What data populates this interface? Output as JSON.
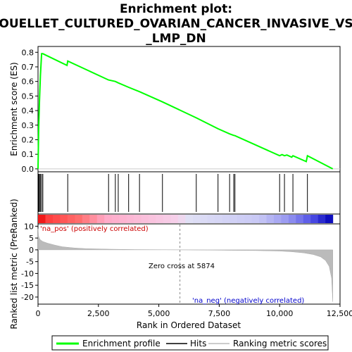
{
  "title_lines": [
    "Enrichment plot:",
    "OUELLET_CULTURED_OVARIAN_CANCER_INVASIVE_VS",
    "_LMP_DN"
  ],
  "chart_data": {
    "type": "line",
    "title": "Enrichment plot: OUELLET_CULTURED_OVARIAN_CANCER_INVASIVE_VS_LMP_DN",
    "es_panel": {
      "ylabel": "Enrichment score (ES)",
      "ylim": [
        -0.02,
        0.84
      ],
      "yticks": [
        "0.0",
        "0.1",
        "0.2",
        "0.3",
        "0.4",
        "0.5",
        "0.6",
        "0.7",
        "0.8"
      ],
      "line_color": "#00ff00",
      "series": [
        {
          "name": "Enrichment profile",
          "x": [
            0,
            30,
            60,
            100,
            150,
            200,
            1200,
            1230,
            2920,
            3200,
            3320,
            3750,
            4200,
            5150,
            6550,
            7450,
            7930,
            8100,
            8150,
            10000,
            10100,
            10200,
            10300,
            10500,
            10550,
            11100,
            11150,
            12200
          ],
          "y": [
            0.0,
            0.29,
            0.47,
            0.64,
            0.79,
            0.79,
            0.71,
            0.74,
            0.61,
            0.6,
            0.59,
            0.56,
            0.53,
            0.46,
            0.35,
            0.275,
            0.24,
            0.23,
            0.228,
            0.09,
            0.098,
            0.09,
            0.095,
            0.08,
            0.09,
            0.05,
            0.09,
            0.0
          ]
        }
      ]
    },
    "hits": [
      30,
      60,
      100,
      150,
      200,
      1230,
      2920,
      3200,
      3320,
      3750,
      4200,
      5150,
      6550,
      7450,
      7930,
      8100,
      8150,
      10000,
      10200,
      10550,
      11150
    ],
    "metric_panel": {
      "ylabel": "Ranked list metric (PreRanked)",
      "ylim": [
        -23,
        11
      ],
      "yticks": [
        10,
        5,
        0,
        -5,
        -10,
        -15,
        -20
      ],
      "series": [
        {
          "name": "Ranking metric scores",
          "x": [
            0,
            20,
            50,
            100,
            200,
            400,
            700,
            1000,
            1500,
            2000,
            3000,
            4000,
            5000,
            5874,
            7000,
            8000,
            9000,
            10000,
            10500,
            11000,
            11400,
            11700,
            11900,
            12050,
            12150,
            12200
          ],
          "y": [
            9,
            6,
            5,
            4.2,
            3.5,
            2.8,
            2.0,
            1.3,
            0.8,
            0.5,
            0.25,
            0.12,
            0.05,
            0.0,
            -0.1,
            -0.2,
            -0.3,
            -0.5,
            -0.8,
            -1.3,
            -2.0,
            -3.0,
            -4.5,
            -7,
            -12,
            -22
          ]
        }
      ],
      "annotations": {
        "pos": "'na_pos' (positively correlated)",
        "zero": "Zero cross at 5874",
        "neg": "'na_neg' (negatively correlated)"
      },
      "zero_cross": 5874
    },
    "xlabel": "Rank in Ordered Dataset",
    "xlim": [
      0,
      12500
    ],
    "xticks": [
      "0",
      "2,500",
      "5,000",
      "7,500",
      "10,000",
      "12,500"
    ],
    "xtick_values": [
      0,
      2500,
      5000,
      7500,
      10000,
      12500
    ],
    "total_rank": 12200,
    "legend": {
      "placement": "bottom",
      "entries": [
        {
          "label": "Enrichment profile",
          "color": "#00ff00"
        },
        {
          "label": "Hits",
          "color": "#000000"
        },
        {
          "label": "Ranking metric scores",
          "color": "#bbbbbb"
        }
      ]
    }
  }
}
